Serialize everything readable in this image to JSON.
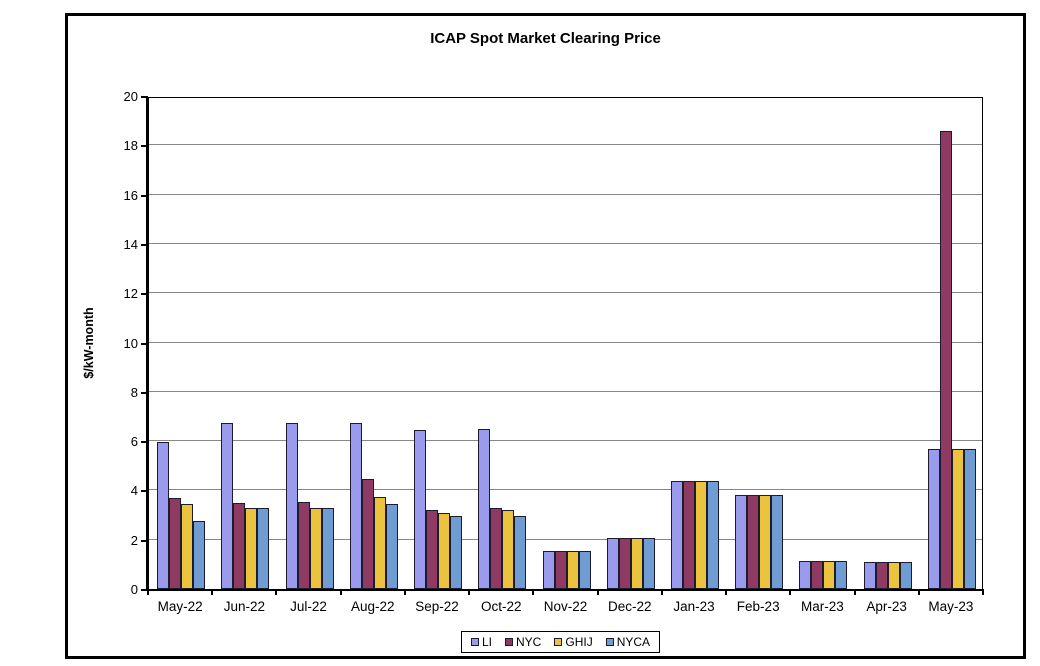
{
  "chart_data": {
    "type": "bar",
    "title": "ICAP Spot Market Clearing Price",
    "xlabel": "",
    "ylabel": "$/kW-month",
    "ylim": [
      0,
      20
    ],
    "ytick_step": 2,
    "yticks": [
      0,
      2,
      4,
      6,
      8,
      10,
      12,
      14,
      16,
      18,
      20
    ],
    "grid": true,
    "legend_position": "bottom-center",
    "plot_background": "#ffffff",
    "gridline_color": "#878787",
    "bar_border_color": "#1c1c2e",
    "categories": [
      "May-22",
      "Jun-22",
      "Jul-22",
      "Aug-22",
      "Sep-22",
      "Oct-22",
      "Nov-22",
      "Dec-22",
      "Jan-23",
      "Feb-23",
      "Mar-23",
      "Apr-23",
      "May-23"
    ],
    "series": [
      {
        "name": "LI",
        "color": "#9b9bee",
        "values": [
          5.95,
          6.75,
          6.75,
          6.75,
          6.45,
          6.5,
          1.55,
          2.05,
          4.4,
          3.8,
          1.15,
          1.1,
          5.7
        ]
      },
      {
        "name": "NYC",
        "color": "#8e3a62",
        "values": [
          3.7,
          3.5,
          3.55,
          4.45,
          3.2,
          3.3,
          1.55,
          2.05,
          4.4,
          3.8,
          1.15,
          1.1,
          18.6
        ]
      },
      {
        "name": "GHIJ",
        "color": "#ecc33f",
        "values": [
          3.45,
          3.3,
          3.3,
          3.75,
          3.1,
          3.2,
          1.55,
          2.05,
          4.4,
          3.8,
          1.15,
          1.1,
          5.7
        ]
      },
      {
        "name": "NYCA",
        "color": "#6f9cd2",
        "values": [
          2.75,
          3.3,
          3.3,
          3.45,
          2.95,
          2.95,
          1.55,
          2.05,
          4.4,
          3.8,
          1.15,
          1.1,
          5.7
        ]
      }
    ]
  }
}
